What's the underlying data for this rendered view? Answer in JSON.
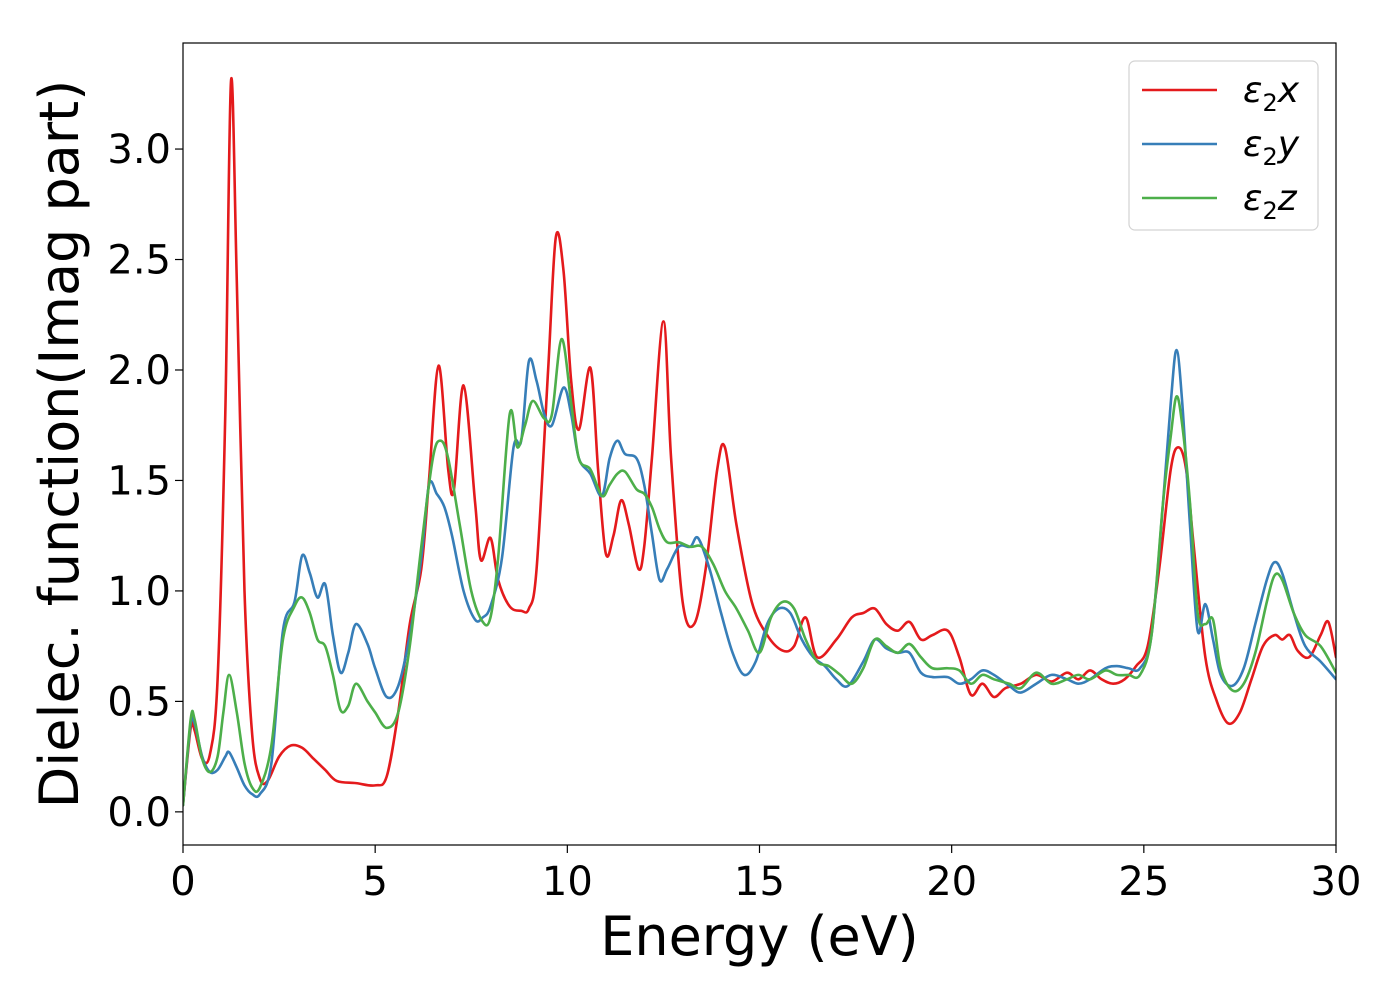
{
  "chart_data": {
    "type": "line",
    "xlabel": "Energy (eV)",
    "ylabel": "Dielec. function(Imag part)",
    "xlim": [
      0,
      30
    ],
    "ylim": [
      -0.15,
      3.48
    ],
    "xticks": [
      0,
      5,
      10,
      15,
      20,
      25,
      30
    ],
    "xtick_labels": [
      "0",
      "5",
      "10",
      "15",
      "20",
      "25",
      "30"
    ],
    "yticks": [
      0.0,
      0.5,
      1.0,
      1.5,
      2.0,
      2.5,
      3.0
    ],
    "ytick_labels": [
      "0.0",
      "0.5",
      "1.0",
      "1.5",
      "2.0",
      "2.5",
      "3.0"
    ],
    "grid": false,
    "legend_position": "top-right",
    "series": [
      {
        "name": "ε₂x",
        "legend_base": "ε",
        "legend_sub": "2",
        "legend_suffix": "x",
        "color": "#e41a1c",
        "x": [
          0,
          0.2,
          0.3,
          0.5,
          0.7,
          0.9,
          1.1,
          1.25,
          1.4,
          1.6,
          1.8,
          2.0,
          2.2,
          2.5,
          2.8,
          3.1,
          3.4,
          3.7,
          4.0,
          4.5,
          5.0,
          5.3,
          5.6,
          5.9,
          6.2,
          6.4,
          6.65,
          6.9,
          7.05,
          7.3,
          7.6,
          7.75,
          8.0,
          8.2,
          8.5,
          8.8,
          9.0,
          9.2,
          9.5,
          9.7,
          9.9,
          10.1,
          10.3,
          10.6,
          10.8,
          11.0,
          11.2,
          11.4,
          11.6,
          11.85,
          12.0,
          12.2,
          12.5,
          12.7,
          13.0,
          13.3,
          13.6,
          13.9,
          14.1,
          14.4,
          14.8,
          15.2,
          15.6,
          15.9,
          16.2,
          16.5,
          17.0,
          17.4,
          17.7,
          18.0,
          18.3,
          18.6,
          18.9,
          19.2,
          19.5,
          19.9,
          20.2,
          20.5,
          20.8,
          21.1,
          21.4,
          21.8,
          22.2,
          22.6,
          23.0,
          23.3,
          23.6,
          23.9,
          24.2,
          24.5,
          24.8,
          25.1,
          25.4,
          25.7,
          25.9,
          26.1,
          26.3,
          26.6,
          26.9,
          27.2,
          27.5,
          27.8,
          28.1,
          28.4,
          28.6,
          28.8,
          29.0,
          29.3,
          29.6,
          29.8,
          30.0
        ],
        "y": [
          0.03,
          0.38,
          0.37,
          0.24,
          0.26,
          0.6,
          1.8,
          3.31,
          2.4,
          1.0,
          0.35,
          0.15,
          0.14,
          0.25,
          0.3,
          0.29,
          0.24,
          0.19,
          0.14,
          0.13,
          0.12,
          0.16,
          0.45,
          0.85,
          1.1,
          1.5,
          2.02,
          1.55,
          1.46,
          1.93,
          1.4,
          1.14,
          1.24,
          1.05,
          0.93,
          0.91,
          0.92,
          1.1,
          2.0,
          2.6,
          2.45,
          1.95,
          1.73,
          2.01,
          1.55,
          1.17,
          1.25,
          1.41,
          1.3,
          1.1,
          1.2,
          1.6,
          2.22,
          1.6,
          0.95,
          0.85,
          1.1,
          1.55,
          1.65,
          1.3,
          0.95,
          0.8,
          0.73,
          0.75,
          0.88,
          0.7,
          0.78,
          0.88,
          0.9,
          0.92,
          0.85,
          0.82,
          0.86,
          0.78,
          0.8,
          0.82,
          0.7,
          0.53,
          0.58,
          0.52,
          0.56,
          0.58,
          0.62,
          0.59,
          0.63,
          0.6,
          0.64,
          0.6,
          0.58,
          0.6,
          0.66,
          0.75,
          1.1,
          1.55,
          1.65,
          1.55,
          1.2,
          0.7,
          0.5,
          0.4,
          0.45,
          0.6,
          0.75,
          0.8,
          0.78,
          0.8,
          0.73,
          0.7,
          0.8,
          0.86,
          0.7
        ]
      },
      {
        "name": "ε₂y",
        "legend_base": "ε",
        "legend_sub": "2",
        "legend_suffix": "y",
        "color": "#377eb8",
        "x": [
          0,
          0.2,
          0.3,
          0.5,
          0.7,
          0.9,
          1.1,
          1.2,
          1.4,
          1.6,
          1.8,
          2.0,
          2.3,
          2.6,
          2.9,
          3.1,
          3.3,
          3.5,
          3.7,
          3.9,
          4.1,
          4.3,
          4.5,
          4.8,
          5.0,
          5.3,
          5.6,
          5.9,
          6.2,
          6.4,
          6.6,
          6.8,
          7.0,
          7.3,
          7.6,
          7.8,
          8.0,
          8.3,
          8.6,
          8.8,
          9.0,
          9.2,
          9.4,
          9.6,
          9.9,
          10.1,
          10.3,
          10.6,
          10.9,
          11.1,
          11.3,
          11.5,
          11.8,
          12.0,
          12.2,
          12.4,
          12.6,
          12.9,
          13.2,
          13.4,
          13.7,
          14.0,
          14.3,
          14.6,
          14.9,
          15.2,
          15.5,
          15.8,
          16.1,
          16.4,
          16.7,
          17.0,
          17.3,
          17.7,
          18.0,
          18.3,
          18.6,
          18.9,
          19.2,
          19.5,
          19.9,
          20.2,
          20.5,
          20.8,
          21.1,
          21.5,
          21.8,
          22.2,
          22.6,
          23.0,
          23.3,
          23.6,
          24.0,
          24.3,
          24.6,
          24.9,
          25.2,
          25.5,
          25.7,
          25.85,
          26.0,
          26.2,
          26.4,
          26.6,
          26.8,
          27.0,
          27.3,
          27.6,
          27.9,
          28.2,
          28.4,
          28.6,
          28.9,
          29.2,
          29.6,
          30.0
        ],
        "y": [
          0.03,
          0.4,
          0.4,
          0.25,
          0.18,
          0.19,
          0.25,
          0.27,
          0.2,
          0.12,
          0.08,
          0.08,
          0.22,
          0.82,
          0.95,
          1.16,
          1.08,
          0.97,
          1.03,
          0.8,
          0.63,
          0.72,
          0.85,
          0.76,
          0.65,
          0.52,
          0.57,
          0.8,
          1.15,
          1.48,
          1.44,
          1.38,
          1.25,
          1.0,
          0.87,
          0.88,
          0.93,
          1.15,
          1.65,
          1.68,
          2.04,
          1.95,
          1.8,
          1.75,
          1.92,
          1.8,
          1.6,
          1.53,
          1.43,
          1.6,
          1.68,
          1.62,
          1.6,
          1.48,
          1.26,
          1.05,
          1.1,
          1.2,
          1.2,
          1.24,
          1.1,
          0.9,
          0.72,
          0.62,
          0.68,
          0.85,
          0.92,
          0.9,
          0.78,
          0.7,
          0.66,
          0.6,
          0.57,
          0.68,
          0.78,
          0.74,
          0.72,
          0.72,
          0.63,
          0.61,
          0.61,
          0.58,
          0.6,
          0.64,
          0.62,
          0.57,
          0.54,
          0.58,
          0.62,
          0.6,
          0.58,
          0.6,
          0.65,
          0.66,
          0.65,
          0.65,
          0.8,
          1.4,
          1.85,
          2.09,
          1.85,
          1.3,
          0.82,
          0.94,
          0.78,
          0.62,
          0.57,
          0.65,
          0.85,
          1.05,
          1.13,
          1.08,
          0.9,
          0.75,
          0.68,
          0.6
        ]
      },
      {
        "name": "ε₂z",
        "legend_base": "ε",
        "legend_sub": "2",
        "legend_suffix": "z",
        "color": "#4daf4a",
        "x": [
          0,
          0.2,
          0.3,
          0.5,
          0.7,
          0.9,
          1.05,
          1.2,
          1.4,
          1.6,
          1.8,
          2.0,
          2.3,
          2.6,
          2.9,
          3.1,
          3.3,
          3.5,
          3.7,
          3.9,
          4.1,
          4.3,
          4.5,
          4.8,
          5.0,
          5.3,
          5.6,
          5.9,
          6.2,
          6.5,
          6.7,
          6.9,
          7.2,
          7.5,
          7.8,
          8.0,
          8.2,
          8.5,
          8.7,
          8.9,
          9.1,
          9.4,
          9.6,
          9.85,
          10.1,
          10.3,
          10.6,
          10.9,
          11.1,
          11.3,
          11.5,
          11.8,
          12.0,
          12.2,
          12.4,
          12.6,
          12.9,
          13.2,
          13.5,
          13.8,
          14.1,
          14.4,
          14.7,
          15.0,
          15.3,
          15.6,
          15.9,
          16.2,
          16.5,
          16.8,
          17.1,
          17.4,
          17.7,
          18.0,
          18.3,
          18.6,
          18.9,
          19.2,
          19.5,
          19.9,
          20.2,
          20.5,
          20.8,
          21.1,
          21.5,
          21.8,
          22.2,
          22.6,
          23.0,
          23.3,
          23.6,
          24.0,
          24.3,
          24.6,
          24.9,
          25.2,
          25.5,
          25.7,
          25.85,
          26.0,
          26.2,
          26.4,
          26.6,
          26.8,
          27.0,
          27.3,
          27.6,
          27.9,
          28.2,
          28.4,
          28.6,
          28.9,
          29.2,
          29.6,
          30.0
        ],
        "y": [
          0.03,
          0.42,
          0.42,
          0.24,
          0.18,
          0.25,
          0.45,
          0.62,
          0.45,
          0.22,
          0.11,
          0.11,
          0.3,
          0.78,
          0.93,
          0.97,
          0.9,
          0.78,
          0.75,
          0.62,
          0.46,
          0.48,
          0.58,
          0.5,
          0.45,
          0.38,
          0.45,
          0.75,
          1.2,
          1.6,
          1.68,
          1.6,
          1.3,
          1.0,
          0.86,
          0.88,
          1.15,
          1.8,
          1.65,
          1.75,
          1.86,
          1.78,
          1.8,
          2.14,
          1.85,
          1.6,
          1.55,
          1.43,
          1.48,
          1.53,
          1.54,
          1.46,
          1.44,
          1.38,
          1.28,
          1.22,
          1.22,
          1.2,
          1.2,
          1.12,
          1.0,
          0.92,
          0.82,
          0.72,
          0.88,
          0.95,
          0.92,
          0.78,
          0.68,
          0.66,
          0.62,
          0.58,
          0.65,
          0.78,
          0.75,
          0.72,
          0.76,
          0.7,
          0.65,
          0.65,
          0.64,
          0.58,
          0.62,
          0.6,
          0.58,
          0.56,
          0.63,
          0.58,
          0.6,
          0.62,
          0.6,
          0.64,
          0.62,
          0.62,
          0.62,
          0.8,
          1.4,
          1.7,
          1.88,
          1.75,
          1.4,
          0.9,
          0.85,
          0.87,
          0.65,
          0.55,
          0.58,
          0.72,
          0.95,
          1.07,
          1.05,
          0.9,
          0.8,
          0.75,
          0.63
        ]
      }
    ]
  }
}
